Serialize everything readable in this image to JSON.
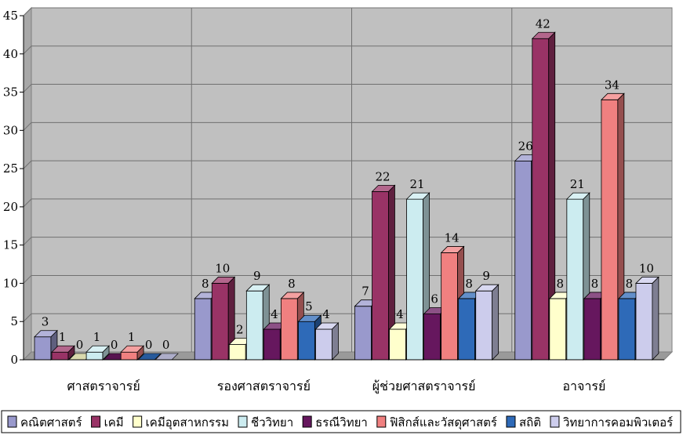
{
  "chart_data": {
    "type": "bar",
    "style": "3d-clustered-column",
    "categories": [
      "ศาสตราจารย์",
      "รองศาสตราจารย์",
      "ผู้ช่วยศาสตราจารย์",
      "อาจารย์"
    ],
    "series": [
      {
        "name": "คณิตศาสตร์",
        "color": "#9999cc",
        "values": [
          3,
          8,
          7,
          26
        ]
      },
      {
        "name": "เคมี",
        "color": "#993366",
        "values": [
          1,
          10,
          22,
          42
        ]
      },
      {
        "name": "เคมีอุตสาหกรรม",
        "color": "#ffffcc",
        "values": [
          0,
          2,
          4,
          8
        ]
      },
      {
        "name": "ชีววิทยา",
        "color": "#ccecf0",
        "values": [
          1,
          9,
          21,
          21
        ]
      },
      {
        "name": "ธรณีวิทยา",
        "color": "#66175e",
        "values": [
          0,
          4,
          6,
          8
        ]
      },
      {
        "name": "ฟิสิกส์และวัสดุศาสตร์",
        "color": "#f08080",
        "values": [
          1,
          8,
          14,
          34
        ]
      },
      {
        "name": "สถิติ",
        "color": "#2e6ab8",
        "values": [
          0,
          5,
          8,
          8
        ]
      },
      {
        "name": "วิทยาการคอมพิวเตอร์",
        "color": "#ccccec",
        "values": [
          0,
          4,
          9,
          10
        ]
      }
    ],
    "yticks": [
      0,
      5,
      10,
      15,
      20,
      25,
      30,
      35,
      40,
      45
    ],
    "ylim": [
      0,
      45
    ],
    "grid": true,
    "legend": "bottom",
    "plot_background": "#c0c0c0"
  }
}
